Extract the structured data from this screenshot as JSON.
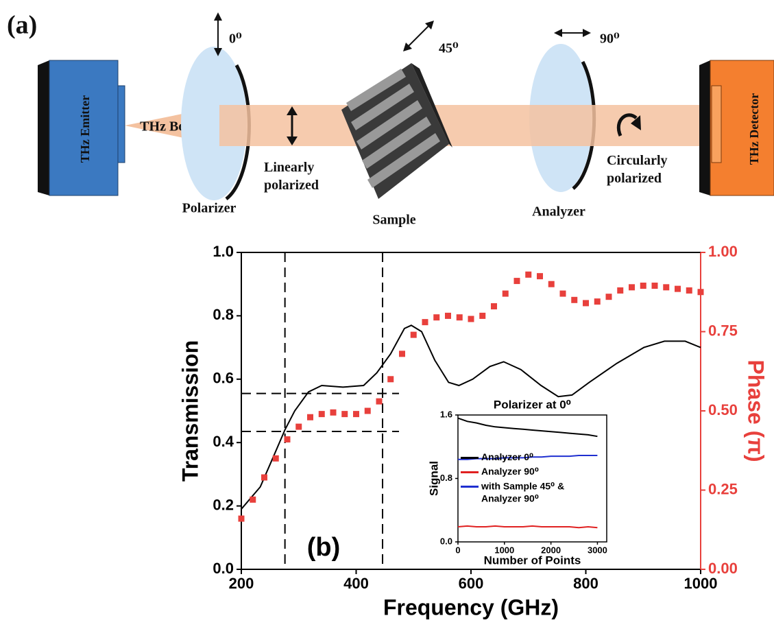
{
  "diagram": {
    "panel_label": "(a)",
    "polarizer_angle": "0⁰",
    "sample_angle": "45⁰",
    "analyzer_angle": "90⁰",
    "emitter": "THz Emitter",
    "beam": "THz Beam",
    "polarizer": "Polarizer",
    "beam_state_1": "Linearly polarized",
    "sample": "Sample",
    "analyzer": "Analyzer",
    "beam_state_2": "Circularly polarized",
    "detector": "THz Detector"
  },
  "chart_data": [
    {
      "type": "line",
      "annotation": "(b)",
      "xlabel": "Frequency (GHz)",
      "ylabel": "Transmission",
      "y2label": "Phase (π)",
      "y2color": "#e8403c",
      "xlim": [
        200,
        1000
      ],
      "xticks": [
        200,
        400,
        600,
        800,
        1000
      ],
      "ylim": [
        0,
        1
      ],
      "yticks": [
        {
          "value": 0,
          "label": "0.0"
        },
        {
          "value": 0.2,
          "label": "0.2"
        },
        {
          "value": 0.4,
          "label": "0.4"
        },
        {
          "value": 0.6,
          "label": "0.6"
        },
        {
          "value": 0.8,
          "label": "0.8"
        },
        {
          "value": 1,
          "label": "1.0"
        }
      ],
      "y2lim": [
        0,
        1
      ],
      "y2ticks": [
        {
          "value": 0,
          "label": "0.00"
        },
        {
          "value": 0.25,
          "label": "0.25"
        },
        {
          "value": 0.5,
          "label": "0.50"
        },
        {
          "value": 0.75,
          "label": "0.75"
        },
        {
          "value": 1,
          "label": "1.00"
        }
      ],
      "guides": {
        "x": [
          276,
          446
        ],
        "y": [
          0.555,
          0.435
        ]
      },
      "series": [
        {
          "color": "#000000",
          "x": [
            200,
            233,
            257,
            276,
            293,
            317,
            340,
            377,
            413,
            436,
            460,
            484,
            496,
            514,
            537,
            561,
            579,
            603,
            633,
            657,
            687,
            722,
            752,
            776,
            806,
            854,
            901,
            937,
            973,
            1000
          ],
          "values": [
            0.19,
            0.26,
            0.36,
            0.44,
            0.5,
            0.56,
            0.58,
            0.575,
            0.58,
            0.62,
            0.68,
            0.76,
            0.77,
            0.75,
            0.66,
            0.59,
            0.58,
            0.6,
            0.64,
            0.655,
            0.63,
            0.58,
            0.545,
            0.55,
            0.59,
            0.65,
            0.7,
            0.72,
            0.72,
            0.7
          ]
        },
        {
          "color": "#e8403c",
          "axis": "y2",
          "marker": "square",
          "x": [
            200,
            220,
            240,
            260,
            280,
            300,
            320,
            340,
            360,
            380,
            400,
            420,
            440,
            460,
            480,
            500,
            520,
            540,
            560,
            580,
            600,
            620,
            640,
            660,
            680,
            700,
            720,
            740,
            760,
            780,
            800,
            820,
            840,
            860,
            880,
            900,
            920,
            940,
            960,
            980,
            1000
          ],
          "values": [
            0.16,
            0.22,
            0.29,
            0.35,
            0.41,
            0.45,
            0.48,
            0.49,
            0.495,
            0.49,
            0.49,
            0.5,
            0.53,
            0.6,
            0.68,
            0.74,
            0.78,
            0.795,
            0.8,
            0.795,
            0.79,
            0.8,
            0.83,
            0.87,
            0.91,
            0.93,
            0.925,
            0.9,
            0.87,
            0.85,
            0.84,
            0.845,
            0.86,
            0.88,
            0.89,
            0.895,
            0.895,
            0.89,
            0.885,
            0.88,
            0.875
          ]
        }
      ]
    },
    {
      "type": "line",
      "title": "Polarizer at 0⁰",
      "xlabel": "Number of Points",
      "ylabel": "Signal",
      "xlim": [
        0,
        3200
      ],
      "xticks": [
        0,
        1000,
        2000,
        3000
      ],
      "ylim": [
        0,
        1.6
      ],
      "yticks": [
        {
          "value": 0,
          "label": "0.0"
        },
        0.8,
        1.6
      ],
      "legend": "center left",
      "series": [
        {
          "name": "Analyzer 0⁰",
          "color": "#000000",
          "x": [
            0,
            200,
            400,
            600,
            800,
            1000,
            1200,
            1400,
            1600,
            1800,
            2000,
            2200,
            2400,
            2600,
            2800,
            3000
          ],
          "values": [
            1.56,
            1.52,
            1.5,
            1.47,
            1.45,
            1.44,
            1.43,
            1.42,
            1.41,
            1.4,
            1.39,
            1.38,
            1.37,
            1.36,
            1.35,
            1.33
          ]
        },
        {
          "name": "Analyzer 90⁰",
          "color": "#e02020",
          "x": [
            0,
            200,
            400,
            600,
            800,
            1000,
            1200,
            1400,
            1600,
            1800,
            2000,
            2200,
            2400,
            2600,
            2800,
            3000
          ],
          "values": [
            0.19,
            0.2,
            0.19,
            0.19,
            0.2,
            0.19,
            0.19,
            0.19,
            0.2,
            0.19,
            0.19,
            0.19,
            0.19,
            0.18,
            0.19,
            0.18
          ]
        },
        {
          "name": "with Sample 45⁰ & Analyzer 90⁰",
          "color": "#1f2fd0",
          "x": [
            0,
            200,
            400,
            600,
            800,
            1000,
            1200,
            1400,
            1600,
            1800,
            2000,
            2200,
            2400,
            2600,
            2800,
            3000
          ],
          "values": [
            1.04,
            1.04,
            1.05,
            1.05,
            1.05,
            1.06,
            1.06,
            1.06,
            1.07,
            1.07,
            1.08,
            1.08,
            1.08,
            1.09,
            1.09,
            1.09
          ]
        }
      ]
    }
  ]
}
